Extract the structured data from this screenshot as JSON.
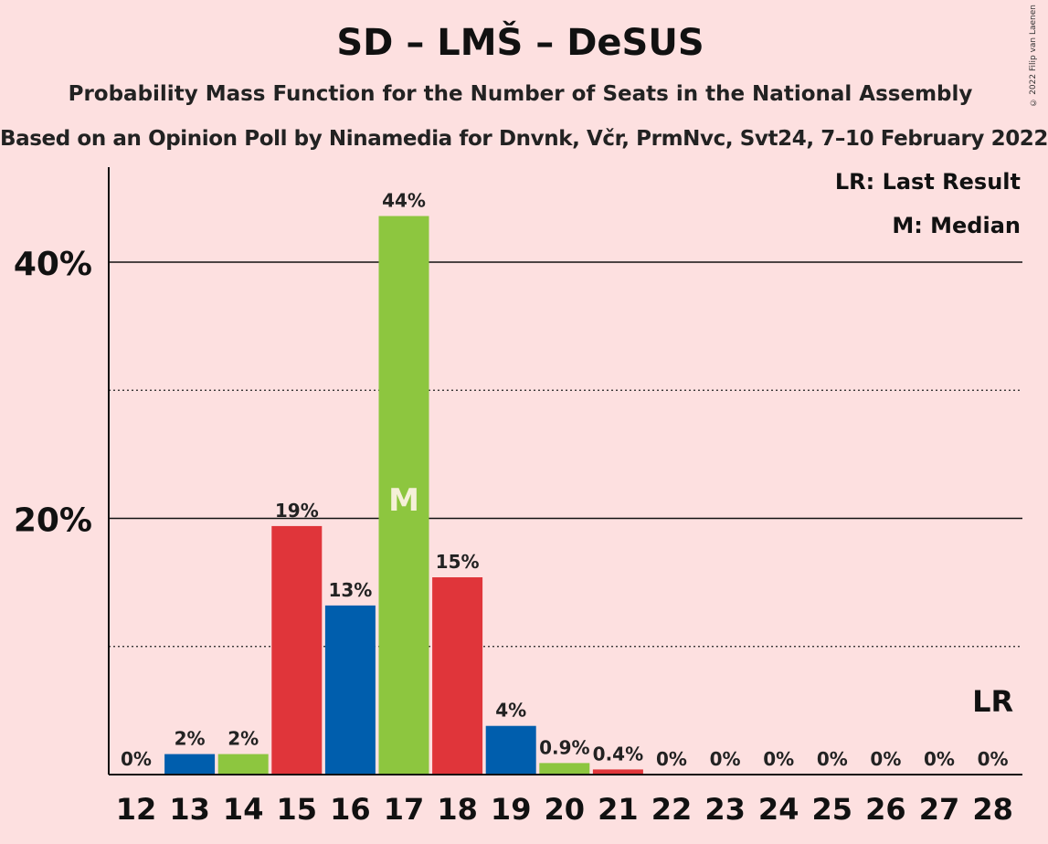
{
  "title": "SD – LMŠ – DeSUS",
  "subtitle": "Probability Mass Function for the Number of Seats in the National Assembly",
  "source": "Based on an Opinion Poll by Ninamedia for Dnvnk, Včr, PrmNvc, Svt24, 7–10 February 2022",
  "copyright": "© 2022 Filip van Laenen",
  "legend": {
    "last_result": "LR: Last Result",
    "median": "M: Median"
  },
  "colors": {
    "background": "#fde0e0",
    "red": "#e0353a",
    "blue": "#005ead",
    "green": "#8dc63f"
  },
  "chart_data": {
    "type": "bar",
    "categories": [
      "12",
      "13",
      "14",
      "15",
      "16",
      "17",
      "18",
      "19",
      "20",
      "21",
      "22",
      "23",
      "24",
      "25",
      "26",
      "27",
      "28"
    ],
    "values": [
      0,
      1.6,
      1.6,
      19.4,
      13.2,
      43.6,
      15.4,
      3.8,
      0.9,
      0.4,
      0,
      0,
      0,
      0,
      0,
      0,
      0
    ],
    "data_labels": [
      "0%",
      "2%",
      "2%",
      "19%",
      "13%",
      "44%",
      "15%",
      "4%",
      "0.9%",
      "0.4%",
      "0%",
      "0%",
      "0%",
      "0%",
      "0%",
      "0%",
      "0%"
    ],
    "bar_colors": [
      "red",
      "blue",
      "green",
      "red",
      "blue",
      "green",
      "red",
      "blue",
      "green",
      "red",
      "blue",
      "green",
      "red",
      "blue",
      "green",
      "red",
      "blue"
    ],
    "yticks": [
      {
        "value": 20,
        "label": "20%"
      },
      {
        "value": 40,
        "label": "40%"
      }
    ],
    "minor_gridlines": [
      10,
      30
    ],
    "ylim": [
      0,
      47.5
    ],
    "median_category": "17",
    "median_marker": "M",
    "last_result_category": "28",
    "last_result_marker": "LR",
    "grid": true,
    "legend_placement": "top-right"
  }
}
